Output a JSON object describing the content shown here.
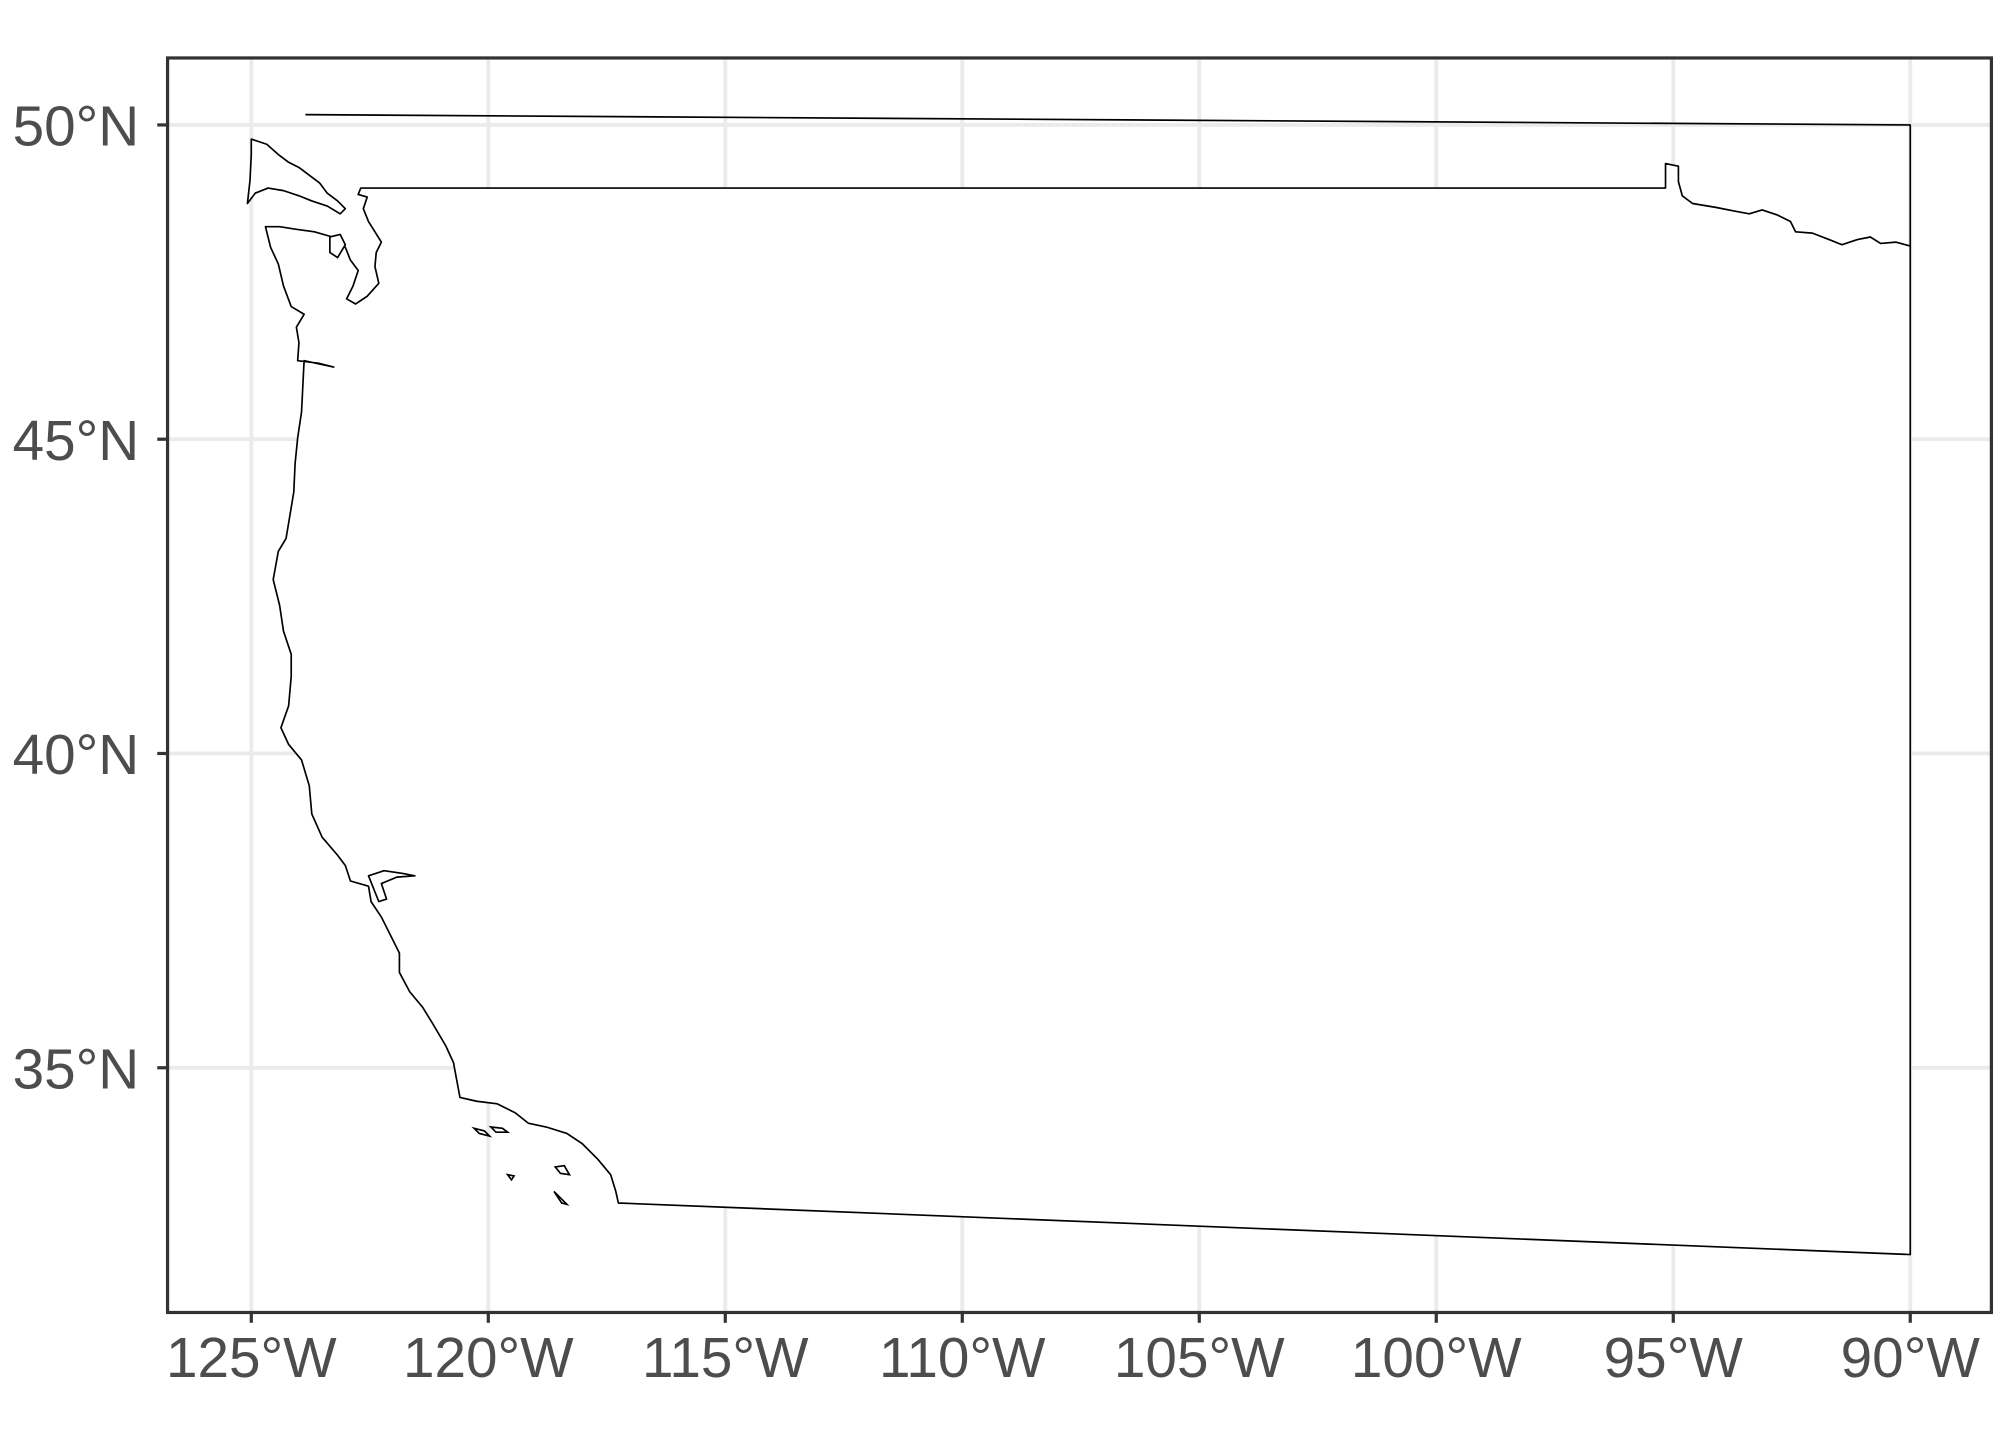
{
  "map": {
    "projection": "longitude-latitude",
    "x_axis": {
      "range": [
        -126.7,
        -88.3
      ],
      "ticks": [
        {
          "value": -125,
          "label": "125°W"
        },
        {
          "value": -120,
          "label": "120°W"
        },
        {
          "value": -115,
          "label": "115°W"
        },
        {
          "value": -110,
          "label": "110°W"
        },
        {
          "value": -105,
          "label": "105°W"
        },
        {
          "value": -100,
          "label": "100°W"
        },
        {
          "value": -95,
          "label": "95°W"
        },
        {
          "value": -90,
          "label": "90°W"
        }
      ]
    },
    "y_axis": {
      "range": [
        31.0,
        51.1
      ],
      "ticks": [
        {
          "value": 35,
          "label": "35°N"
        },
        {
          "value": 40,
          "label": "40°N"
        },
        {
          "value": 45,
          "label": "45°N"
        },
        {
          "value": 50,
          "label": "50°N"
        }
      ]
    },
    "grid": true,
    "colors": {
      "background": "#ffffff",
      "grid": "#ebebeb",
      "border": "#333333",
      "outline": "#000000",
      "tick_label": "#4d4d4d"
    }
  }
}
